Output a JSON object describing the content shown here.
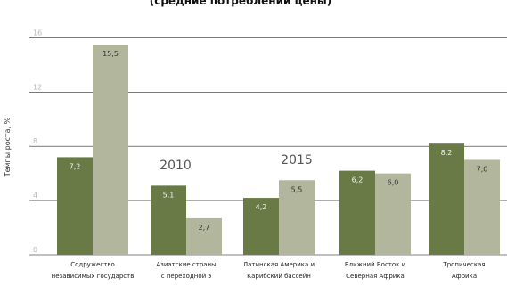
{
  "chart_data": {
    "type": "bar",
    "title": "(средние потреблении цены)",
    "ylabel": "Темпы роста, %",
    "ylim": [
      0,
      18
    ],
    "yticks": [
      0,
      4,
      8,
      12,
      16
    ],
    "ytick_labels": [
      "0",
      "4",
      "8",
      "12",
      "16"
    ],
    "grid": true,
    "categories": [
      [
        "Содружество",
        "независимых государств"
      ],
      [
        "Азиатские страны",
        "с переходной э"
      ],
      [
        "Латинская Америка и",
        "Карибский бассейн"
      ],
      [
        "Ближний Восток и",
        "Северная Африка"
      ],
      [
        "Тропическая",
        "Африка"
      ]
    ],
    "series": [
      {
        "name": "2010",
        "values": [
          7.2,
          5.1,
          4.2,
          6.2,
          8.2
        ],
        "value_labels": [
          "7,2",
          "5,1",
          "4,2",
          "6,2",
          "8,2"
        ],
        "color": "#6a7a46"
      },
      {
        "name": "2015",
        "values": [
          15.5,
          2.7,
          5.5,
          6.0,
          7.0
        ],
        "value_labels": [
          "15,5",
          "2,7",
          "5,5",
          "6,0",
          "7,0"
        ],
        "color": "#b2b69c"
      }
    ]
  }
}
